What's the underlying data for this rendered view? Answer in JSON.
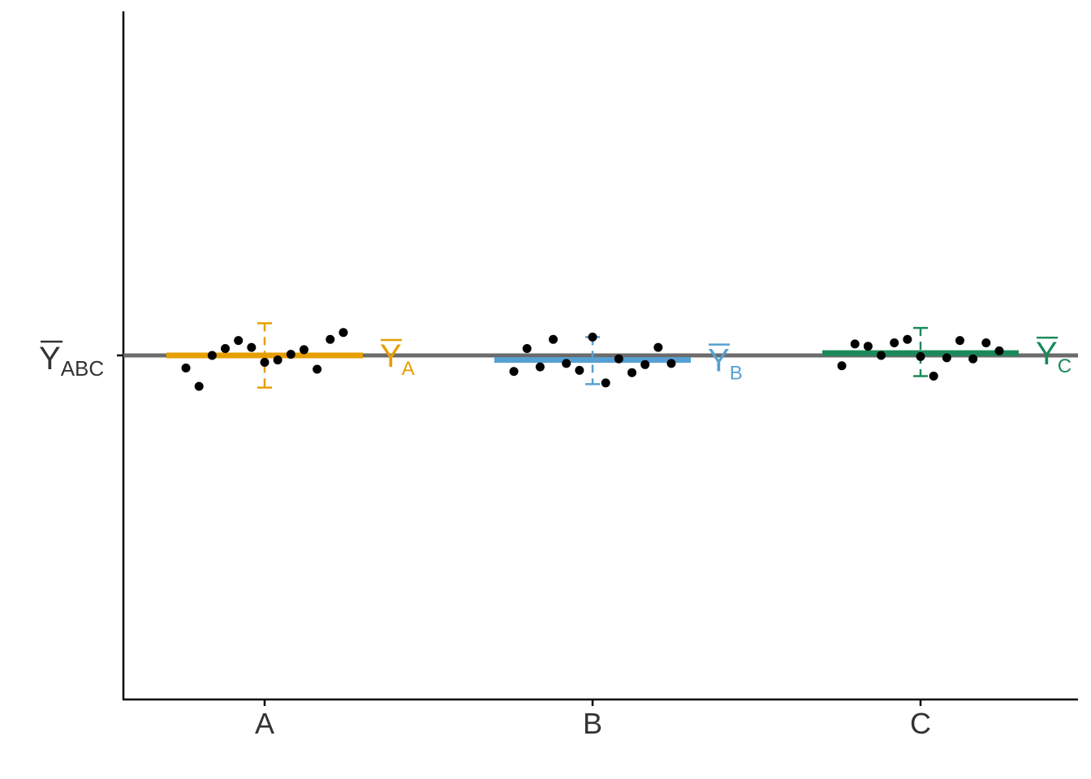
{
  "chart_data": {
    "type": "scatter",
    "title": "",
    "xlabel": "",
    "ylabel": "",
    "categories": [
      "A",
      "B",
      "C"
    ],
    "ylim": [
      -3,
      3
    ],
    "grand_mean": {
      "value": 0,
      "label": "Y",
      "label_sub": "ABC",
      "color": "#6b6b6b"
    },
    "groups": [
      {
        "category": "A",
        "color": "#E69F00",
        "mean_label": "Y",
        "mean_label_sub": "A",
        "mean": 0.0,
        "error_low": -0.28,
        "error_high": 0.28,
        "points": [
          {
            "x": -0.3,
            "y": -0.11
          },
          {
            "x": -0.25,
            "y": -0.27
          },
          {
            "x": -0.2,
            "y": 0.0
          },
          {
            "x": -0.15,
            "y": 0.06
          },
          {
            "x": -0.1,
            "y": 0.13
          },
          {
            "x": -0.05,
            "y": 0.07
          },
          {
            "x": 0.0,
            "y": -0.06
          },
          {
            "x": 0.05,
            "y": -0.04
          },
          {
            "x": 0.1,
            "y": 0.01
          },
          {
            "x": 0.15,
            "y": 0.05
          },
          {
            "x": 0.2,
            "y": -0.12
          },
          {
            "x": 0.25,
            "y": 0.14
          },
          {
            "x": 0.3,
            "y": 0.2
          }
        ]
      },
      {
        "category": "B",
        "color": "#56A0D3",
        "mean_label": "Y",
        "mean_label_sub": "B",
        "mean": -0.04,
        "error_low": -0.25,
        "error_high": 0.16,
        "points": [
          {
            "x": -0.3,
            "y": -0.14
          },
          {
            "x": -0.25,
            "y": 0.06
          },
          {
            "x": -0.2,
            "y": -0.1
          },
          {
            "x": -0.15,
            "y": 0.14
          },
          {
            "x": -0.1,
            "y": -0.07
          },
          {
            "x": -0.05,
            "y": -0.13
          },
          {
            "x": 0.0,
            "y": 0.16
          },
          {
            "x": 0.05,
            "y": -0.24
          },
          {
            "x": 0.1,
            "y": -0.03
          },
          {
            "x": 0.15,
            "y": -0.15
          },
          {
            "x": 0.2,
            "y": -0.08
          },
          {
            "x": 0.25,
            "y": 0.07
          },
          {
            "x": 0.3,
            "y": -0.07
          }
        ]
      },
      {
        "category": "C",
        "color": "#1B8A5A",
        "mean_label": "Y",
        "mean_label_sub": "C",
        "mean": 0.02,
        "error_low": -0.18,
        "error_high": 0.24,
        "points": [
          {
            "x": -0.3,
            "y": -0.09
          },
          {
            "x": -0.25,
            "y": 0.1
          },
          {
            "x": -0.2,
            "y": 0.08
          },
          {
            "x": -0.15,
            "y": 0.0
          },
          {
            "x": -0.1,
            "y": 0.11
          },
          {
            "x": -0.05,
            "y": 0.14
          },
          {
            "x": 0.0,
            "y": -0.01
          },
          {
            "x": 0.05,
            "y": -0.18
          },
          {
            "x": 0.1,
            "y": -0.02
          },
          {
            "x": 0.15,
            "y": 0.13
          },
          {
            "x": 0.2,
            "y": -0.03
          },
          {
            "x": 0.25,
            "y": 0.11
          },
          {
            "x": 0.3,
            "y": 0.04
          }
        ]
      }
    ],
    "grid": false,
    "legend": "none"
  }
}
